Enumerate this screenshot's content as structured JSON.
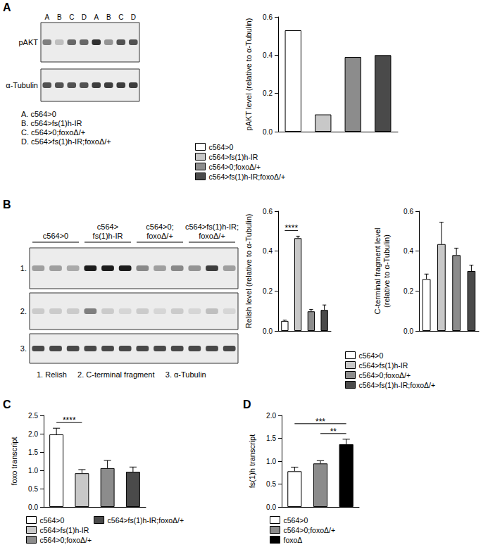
{
  "panel_labels": [
    "A",
    "B",
    "C",
    "D"
  ],
  "blots": [
    {
      "lane_labels": [
        "A",
        "B",
        "C",
        "D",
        "A",
        "B",
        "C",
        "D"
      ],
      "rows": [
        {
          "label": "pAKT",
          "bands": [
            0.5,
            0.2,
            0.6,
            0.6,
            0.85,
            0.4,
            0.7,
            0.7
          ]
        },
        {
          "label": "α-Tubulin",
          "bands": [
            0.7,
            0.7,
            0.7,
            0.7,
            0.8,
            0.8,
            0.8,
            0.8
          ]
        }
      ],
      "key": [
        "A. c564>0",
        "B. c564>fs(1)h-IR",
        "C. c564>0;foxoΔ/+",
        "D. c564>fs(1)h-IR;foxoΔ/+"
      ]
    },
    {
      "group_labels": [
        "c564>0",
        "c564>\nfs(1)h-IR",
        "c564>0;\nfoxoΔ/+",
        "c564>fs(1)h-IR;\nfoxoΔ/+"
      ],
      "rows": [
        {
          "label": "1.",
          "bands": [
            0.35,
            0.35,
            0.3,
            0.95,
            0.95,
            0.95,
            0.45,
            0.35,
            0.45,
            0.4,
            0.8,
            0.35
          ]
        },
        {
          "label": "2.",
          "bands": [
            0.15,
            0.15,
            0.15,
            0.5,
            0.15,
            0.1,
            0.15,
            0.1,
            0.15,
            0.1,
            0.2,
            0.1
          ]
        },
        {
          "label": "3.",
          "bands": [
            0.75,
            0.75,
            0.75,
            0.75,
            0.75,
            0.75,
            0.75,
            0.75,
            0.75,
            0.75,
            0.75,
            0.75
          ]
        }
      ],
      "caption": [
        "1. Relish",
        "2. C-terminal fragment",
        "3. α-Tubulin"
      ]
    }
  ],
  "chart_data": [
    {
      "type": "bar",
      "ylabel": "pAKT level (relative to α-Tubulin)",
      "categories": [
        "c564>0",
        "c564>fs(1)h-IR",
        "c564>0;foxoΔ/+",
        "c564>fs(1)h-IR;foxoΔ/+"
      ],
      "values": [
        0.53,
        0.09,
        0.39,
        0.4
      ],
      "colors": [
        "#ffffff",
        "#c8c8c8",
        "#8c8c8c",
        "#4a4a4a"
      ],
      "ylim": [
        0,
        0.6
      ],
      "yticks": [
        {
          "value": 0,
          "label": "0.0"
        },
        {
          "value": 0.2,
          "label": "0.2"
        },
        {
          "value": 0.4,
          "label": "0.4"
        },
        {
          "value": 0.6,
          "label": "0.6"
        }
      ],
      "grid": false,
      "tick_labels": "y",
      "legend": "bottom"
    },
    {
      "type": "bar",
      "ylabel": "Relish level (relative to α-Tubulin)",
      "categories": [
        "c564>0",
        "c564>fs(1)h-IR",
        "c564>0;foxoΔ/+",
        "c564>fs(1)h-IR;foxoΔ/+"
      ],
      "values": [
        0.05,
        0.465,
        0.098,
        0.105
      ],
      "errors": [
        0.004,
        0.01,
        0.01,
        0.025
      ],
      "colors": [
        "#ffffff",
        "#c8c8c8",
        "#8c8c8c",
        "#4a4a4a"
      ],
      "ylim": [
        0,
        0.6
      ],
      "yticks": [
        {
          "value": 0,
          "label": "0.0"
        },
        {
          "value": 0.2,
          "label": "0.2"
        },
        {
          "value": 0.4,
          "label": "0.4"
        },
        {
          "value": 0.6,
          "label": "0.6"
        }
      ],
      "annotations": [
        {
          "from": 0,
          "to": 1,
          "label": "****"
        }
      ],
      "grid": false,
      "tick_labels": "y"
    },
    {
      "type": "bar",
      "ylabel": "C-terminal fragment level\n(relative to α-Tubulin)",
      "categories": [
        "c564>0",
        "c564>fs(1)h-IR",
        "c564>0;foxoΔ/+",
        "c564>fs(1)h-IR;foxoΔ/+"
      ],
      "values": [
        0.26,
        0.435,
        0.38,
        0.3
      ],
      "errors": [
        0.025,
        0.11,
        0.035,
        0.03
      ],
      "colors": [
        "#ffffff",
        "#c8c8c8",
        "#8c8c8c",
        "#4a4a4a"
      ],
      "ylim": [
        0,
        0.6
      ],
      "yticks": [
        {
          "value": 0,
          "label": "0.0"
        },
        {
          "value": 0.2,
          "label": "0.2"
        },
        {
          "value": 0.4,
          "label": "0.4"
        },
        {
          "value": 0.6,
          "label": "0.6"
        }
      ],
      "grid": false,
      "tick_labels": "y",
      "legend": "bottom"
    },
    {
      "type": "bar",
      "ylabel": "foxo transcript",
      "categories": [
        "c564>0",
        "c564>fs(1)h-IR",
        "c564>0;foxoΔ/+",
        "c564>fs(1)h-IR;foxoΔ/+"
      ],
      "values": [
        1.98,
        0.92,
        1.06,
        0.96
      ],
      "errors": [
        0.17,
        0.1,
        0.21,
        0.13
      ],
      "colors": [
        "#ffffff",
        "#c8c8c8",
        "#8c8c8c",
        "#4a4a4a"
      ],
      "ylim": [
        0,
        2.5
      ],
      "yticks": [
        {
          "value": 0,
          "label": "0.0"
        },
        {
          "value": 0.5,
          "label": "0.5"
        },
        {
          "value": 1,
          "label": "1.0"
        },
        {
          "value": 1.5,
          "label": "1.5"
        },
        {
          "value": 2,
          "label": "2.0"
        },
        {
          "value": 2.5,
          "label": "2.5"
        }
      ],
      "annotations": [
        {
          "from": 0,
          "to": 1,
          "label": "****"
        }
      ],
      "grid": false,
      "tick_labels": "y",
      "legend": "bottom"
    },
    {
      "type": "bar",
      "ylabel": "fs(1)h transcript",
      "categories": [
        "c564>0",
        "c564>0;foxoΔ/+",
        "foxoΔ"
      ],
      "values": [
        0.78,
        0.95,
        1.37
      ],
      "errors": [
        0.09,
        0.06,
        0.11
      ],
      "colors": [
        "#ffffff",
        "#8c8c8c",
        "#000000"
      ],
      "ylim": [
        0,
        2.0
      ],
      "yticks": [
        {
          "value": 0,
          "label": "0.0"
        },
        {
          "value": 0.5,
          "label": "0.5"
        },
        {
          "value": 1,
          "label": "1.0"
        },
        {
          "value": 1.5,
          "label": "1.5"
        },
        {
          "value": 2,
          "label": "2.0"
        }
      ],
      "annotations": [
        {
          "from": 0,
          "to": 2,
          "label": "***"
        },
        {
          "from": 1,
          "to": 2,
          "label": "**"
        }
      ],
      "grid": false,
      "tick_labels": "y",
      "legend": "bottom"
    }
  ]
}
